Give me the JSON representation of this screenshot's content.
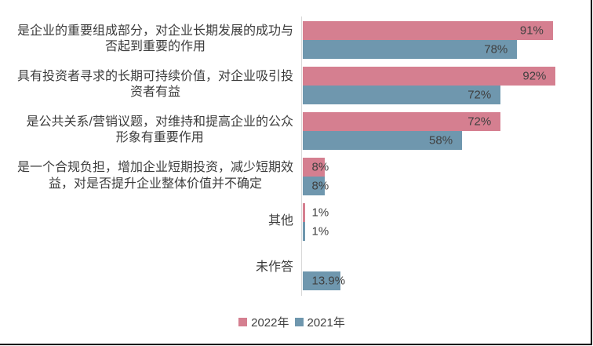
{
  "chart_data": {
    "type": "bar",
    "orientation": "horizontal",
    "unit": "%",
    "xlim": [
      0,
      100
    ],
    "grid": false,
    "legend_position": "bottom",
    "axis_color": "#d9d9d9",
    "categories": [
      "是企业的重要组成部分，对企业长期发展的成功与否起到重要的作用",
      "具有投资者寻求的长期可持续价值，对企业吸引投资者有益",
      "是公共关系/营销议题，对维持和提高企业的公众形象有重要作用",
      "是一个合规负担，增加企业短期投资，减少短期效益，对是否提升企业整体价值并不确定",
      "其他",
      "未作答"
    ],
    "series": [
      {
        "name": "2022年",
        "color": "#d57f90",
        "values": [
          91,
          92,
          72,
          8,
          1,
          null
        ]
      },
      {
        "name": "2021年",
        "color": "#6f97ae",
        "values": [
          78,
          72,
          58,
          8,
          1,
          13.9
        ]
      }
    ]
  },
  "rows": [
    {
      "lines": [
        "是企业的重要组成部分，对企业长期发展的成功与",
        "否起到重要的作用"
      ],
      "v2022": 91,
      "v2021": 78,
      "label2022": "91%",
      "label2021": "78%"
    },
    {
      "lines": [
        "具有投资者寻求的长期可持续价值，对企业吸引投",
        "资者有益"
      ],
      "v2022": 92,
      "v2021": 72,
      "label2022": "92%",
      "label2021": "72%"
    },
    {
      "lines": [
        "是公共关系/营销议题，对维持和提高企业的公众",
        "形象有重要作用"
      ],
      "v2022": 72,
      "v2021": 58,
      "label2022": "72%",
      "label2021": "58%"
    },
    {
      "lines": [
        "是一个合规负担，增加企业短期投资，减少短期效",
        "益，对是否提升企业整体价值并不确定"
      ],
      "v2022": 8,
      "v2021": 8,
      "label2022": "8%",
      "label2021": "8%"
    },
    {
      "lines": [
        "其他"
      ],
      "v2022": 1,
      "v2021": 1,
      "label2022": "1%",
      "label2021": "1%"
    },
    {
      "lines": [
        "未作答"
      ],
      "v2022": null,
      "v2021": 13.9,
      "label2022": null,
      "label2021": "13.9%"
    }
  ],
  "legend": {
    "items": [
      {
        "label": "2022年",
        "color": "#d57f90"
      },
      {
        "label": "2021年",
        "color": "#6f97ae"
      }
    ]
  },
  "colors": {
    "series_2022": "#d57f90",
    "series_2021": "#6f97ae",
    "value_text": "#404040",
    "category_text": "#3c3c3c",
    "axis": "#d9d9d9",
    "border": "#000000"
  }
}
